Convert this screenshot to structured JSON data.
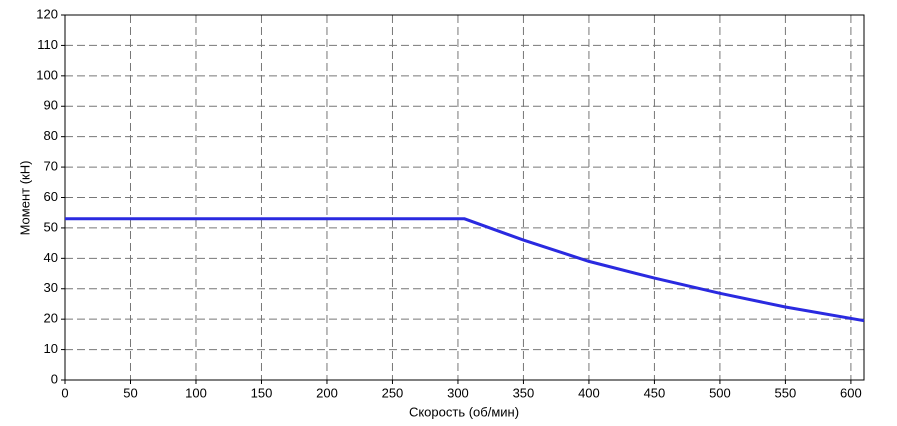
{
  "chart_data": {
    "type": "line",
    "x_label": "Скорость (об/мин)",
    "y_label": "Момент (кН)",
    "x": [
      0,
      305,
      350,
      400,
      450,
      500,
      550,
      610
    ],
    "series": [
      {
        "name": "Момент",
        "color": "#2a2ae0",
        "values": [
          53,
          53,
          46,
          39,
          33.5,
          28.5,
          24,
          19.5
        ]
      }
    ],
    "xlim": [
      0,
      610
    ],
    "ylim": [
      0,
      120
    ],
    "xticks": [
      0,
      50,
      100,
      150,
      200,
      250,
      300,
      350,
      400,
      450,
      500,
      550,
      600
    ],
    "yticks": [
      0,
      10,
      20,
      30,
      40,
      50,
      60,
      70,
      80,
      90,
      100,
      110,
      120
    ],
    "grid": true
  }
}
